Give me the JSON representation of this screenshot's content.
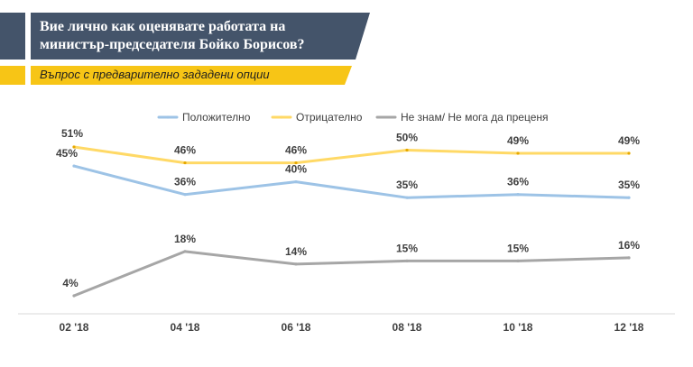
{
  "header": {
    "title": "Вие лично как оценявате работата на министър-председателя Бойко Борисов?",
    "subtitle": "Въпрос с предварително зададени опции"
  },
  "colors": {
    "header_bg": "#44546a",
    "accent": "#f7c516"
  },
  "chart_data": {
    "type": "line",
    "categories": [
      "02 '18",
      "04 '18",
      "06 '18",
      "08 '18",
      "10 '18",
      "12 '18"
    ],
    "series": [
      {
        "name": "Положително",
        "values": [
          45,
          36,
          40,
          35,
          36,
          35
        ],
        "labels": [
          "45%",
          "36%",
          "40%",
          "35%",
          "36%",
          "35%"
        ],
        "color": "#9dc3e6"
      },
      {
        "name": "Отрицателно",
        "values": [
          51,
          46,
          46,
          50,
          49,
          49
        ],
        "labels": [
          "51%",
          "46%",
          "46%",
          "50%",
          "49%",
          "49%"
        ],
        "color": "#ffd966"
      },
      {
        "name": "Не знам/ Не мога да преценя",
        "values": [
          4,
          18,
          14,
          15,
          15,
          16
        ],
        "labels": [
          "4%",
          "18%",
          "14%",
          "15%",
          "15%",
          "16%"
        ],
        "color": "#a6a6a6"
      }
    ],
    "legend_position": "top",
    "grid": false
  }
}
